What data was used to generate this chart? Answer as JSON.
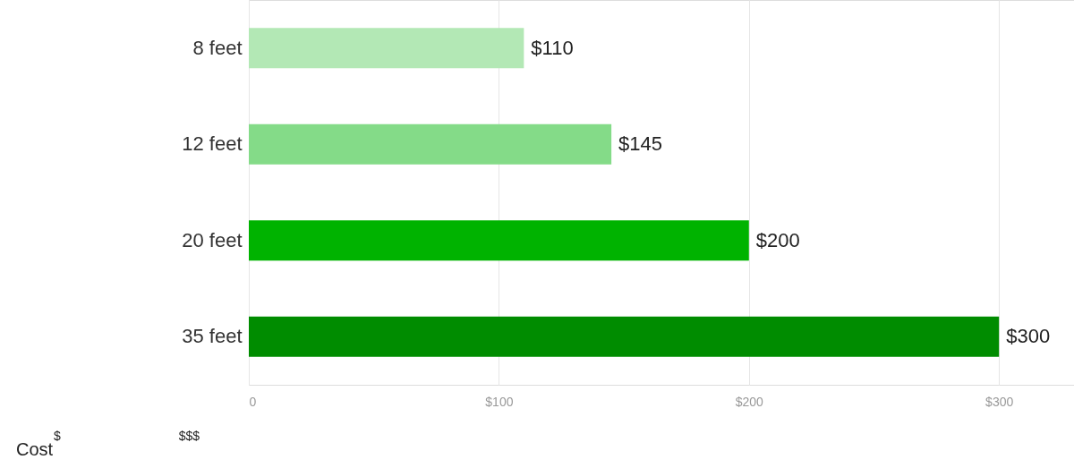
{
  "chart_data": {
    "type": "bar",
    "orientation": "horizontal",
    "categories": [
      "8 feet",
      "12 feet",
      "20 feet",
      "35 feet"
    ],
    "values": [
      110,
      145,
      200,
      300
    ],
    "colors": [
      "#b3e8b5",
      "#84db88",
      "#00b300",
      "#008c00"
    ],
    "value_labels": [
      "$110",
      "$145",
      "$200",
      "$300"
    ],
    "xlim": [
      0,
      330
    ],
    "xticks": [
      0,
      {
        "value": 100,
        "label": "$100"
      },
      {
        "value": 200,
        "label": "$200"
      },
      {
        "value": 300,
        "label": "$300"
      }
    ],
    "grid": "x",
    "annotations": [
      "Cost",
      "$",
      "$$$"
    ]
  }
}
